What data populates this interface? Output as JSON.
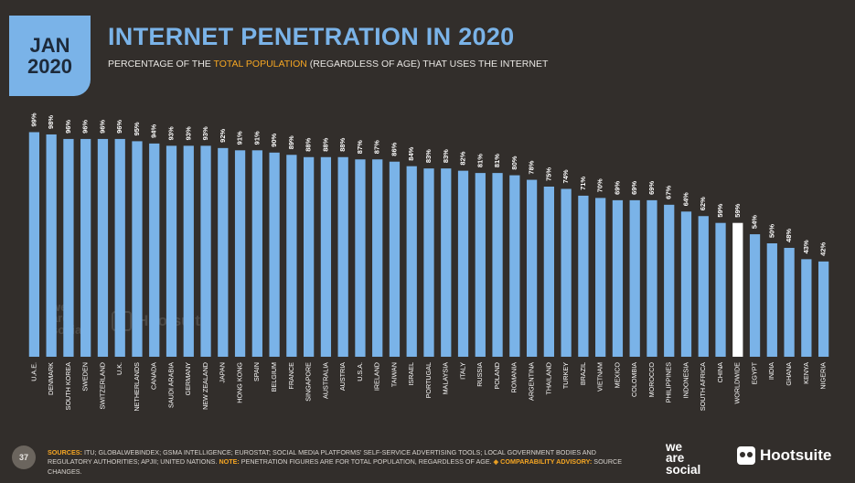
{
  "header": {
    "month": "JAN",
    "year": "2020",
    "title": "INTERNET PENETRATION IN 2020",
    "subtitle_pre": "PERCENTAGE OF THE ",
    "subtitle_highlight": "TOTAL POPULATION",
    "subtitle_post": " (REGARDLESS OF AGE) THAT USES THE INTERNET"
  },
  "colors": {
    "background": "#322e2b",
    "bar": "#7ab3e8",
    "highlight_bar": "#ffffff",
    "accent": "#f5a623",
    "badge": "#7ab3e8"
  },
  "chart_data": {
    "type": "bar",
    "categories": [
      "U.A.E.",
      "DENMARK",
      "SOUTH KOREA",
      "SWEDEN",
      "SWITZERLAND",
      "U.K.",
      "NETHERLANDS",
      "CANADA",
      "SAUDI ARABIA",
      "GERMANY",
      "NEW ZEALAND",
      "JAPAN",
      "HONG KONG",
      "SPAIN",
      "BELGIUM",
      "FRANCE",
      "SINGAPORE",
      "AUSTRALIA",
      "AUSTRIA",
      "U.S.A.",
      "IRELAND",
      "TAIWAN",
      "ISRAEL",
      "PORTUGAL",
      "MALAYSIA",
      "ITALY",
      "RUSSIA",
      "POLAND",
      "ROMANIA",
      "ARGENTINA",
      "THAILAND",
      "TURKEY",
      "BRAZIL",
      "VIETNAM",
      "MEXICO",
      "COLOMBIA",
      "MOROCCO",
      "PHILIPPINES",
      "INDONESIA",
      "SOUTH AFRICA",
      "CHINA",
      "WORLDWIDE",
      "EGYPT",
      "INDIA",
      "GHANA",
      "KENYA",
      "NIGERIA"
    ],
    "values": [
      99,
      98,
      96,
      96,
      96,
      96,
      95,
      94,
      93,
      93,
      93,
      92,
      91,
      91,
      90,
      89,
      88,
      88,
      88,
      87,
      87,
      86,
      84,
      83,
      83,
      82,
      81,
      81,
      80,
      78,
      75,
      74,
      71,
      70,
      69,
      69,
      69,
      67,
      64,
      62,
      59,
      59,
      54,
      50,
      48,
      43,
      42
    ],
    "value_labels": [
      "99%",
      "98%",
      "96%",
      "96%",
      "96%",
      "96%",
      "95%",
      "94%",
      "93%",
      "93%",
      "93%",
      "92%",
      "91%",
      "91%",
      "90%",
      "89%",
      "88%",
      "88%",
      "88%",
      "87%",
      "87%",
      "86%",
      "84%",
      "83%",
      "83%",
      "82%",
      "81%",
      "81%",
      "80%",
      "78%",
      "75%",
      "74%",
      "71%",
      "70%",
      "69%",
      "69%",
      "69%",
      "67%",
      "64%",
      "62%",
      "59%",
      "59%",
      "54%",
      "50%",
      "48%",
      "43%",
      "42%"
    ],
    "highlight_category": "WORLDWIDE",
    "ylim": [
      0,
      100
    ]
  },
  "watermark": {
    "brand1": "we are social",
    "brand2": "Hootsuite"
  },
  "footer": {
    "page_number": "37",
    "sources_label": "SOURCES:",
    "sources_text": " ITU; GLOBALWEBINDEX; GSMA INTELLIGENCE; EUROSTAT; SOCIAL MEDIA PLATFORMS' SELF-SERVICE ADVERTISING TOOLS; LOCAL GOVERNMENT BODIES AND REGULATORY AUTHORITIES; APJII; UNITED NATIONS. ",
    "note_label": "NOTE:",
    "note_text": " PENETRATION FIGURES ARE FOR TOTAL POPULATION, REGARDLESS OF AGE. ",
    "advisory_label": "◈ COMPARABILITY ADVISORY:",
    "advisory_text": " SOURCE CHANGES.",
    "brand_was_1": "we",
    "brand_was_2": "are",
    "brand_was_3": "social",
    "brand_hs": "Hootsuite"
  }
}
